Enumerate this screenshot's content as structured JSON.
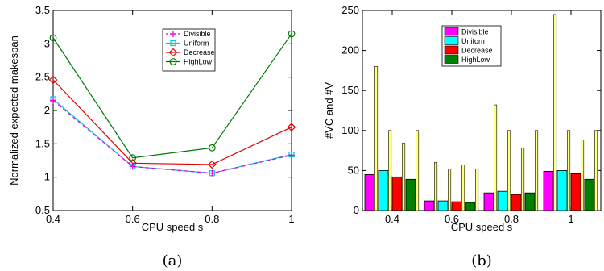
{
  "chart_data": [
    {
      "type": "line",
      "caption": "(a)",
      "xlabel": "CPU speed s",
      "ylabel": "Normalized expected makespan",
      "x": [
        0.4,
        0.6,
        0.8,
        1
      ],
      "xticks": [
        "0.4",
        "0.6",
        "0.8",
        "1"
      ],
      "yticks": [
        "0.5",
        "1",
        "1.5",
        "2",
        "2.5",
        "3",
        "3.5"
      ],
      "xlim": [
        0.4,
        1
      ],
      "ylim": [
        0.5,
        3.5
      ],
      "legend_position": "top-center",
      "series": [
        {
          "name": "Divisible",
          "values": [
            2.15,
            1.16,
            1.06,
            1.33
          ],
          "color": "#e600e6",
          "marker": "plus",
          "dash": "5,3"
        },
        {
          "name": "Uniform",
          "values": [
            2.17,
            1.16,
            1.06,
            1.34
          ],
          "color": "#00c8e0",
          "marker": "square",
          "dash": ""
        },
        {
          "name": "Decrease",
          "values": [
            2.46,
            1.21,
            1.19,
            1.75
          ],
          "color": "#e60000",
          "marker": "diamond",
          "dash": ""
        },
        {
          "name": "HighLow",
          "values": [
            3.09,
            1.29,
            1.44,
            3.15
          ],
          "color": "#007a00",
          "marker": "circle",
          "dash": ""
        }
      ]
    },
    {
      "type": "bar",
      "caption": "(b)",
      "xlabel": "CPU speed s",
      "ylabel": "#VC and #V",
      "categories": [
        "0.4",
        "0.6",
        "0.8",
        "1"
      ],
      "yticks": [
        "0",
        "50",
        "100",
        "150",
        "200",
        "250"
      ],
      "ylim": [
        0,
        250
      ],
      "legend_position": "top-center",
      "series": [
        {
          "name": "Divisible",
          "color": "#ff00ff",
          "values": [
            45,
            12,
            22,
            49
          ],
          "thin_values": [
            180,
            60,
            132,
            245
          ]
        },
        {
          "name": "Uniform",
          "color": "#00ffff",
          "values": [
            50,
            12,
            24,
            50
          ],
          "thin_values": [
            100,
            52,
            100,
            100
          ]
        },
        {
          "name": "Decrease",
          "color": "#ff0000",
          "values": [
            42,
            11,
            20,
            46
          ],
          "thin_values": [
            84,
            57,
            78,
            88
          ]
        },
        {
          "name": "HighLow",
          "color": "#008000",
          "values": [
            39,
            10,
            22,
            39
          ],
          "thin_values": [
            100,
            52,
            100,
            100
          ]
        }
      ],
      "thin_bar_color": "#ffff80"
    }
  ]
}
